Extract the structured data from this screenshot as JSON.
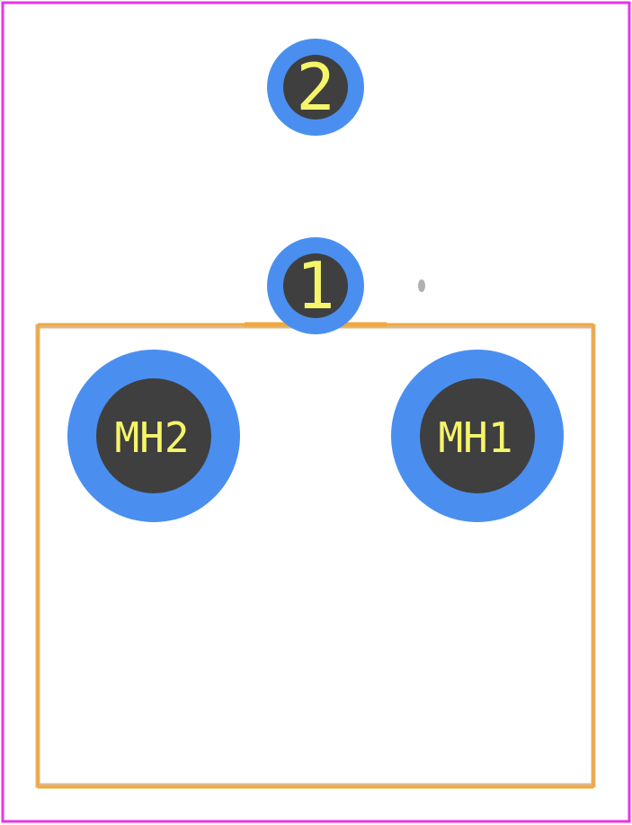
{
  "colors": {
    "background": "#ffffff",
    "courtyard": "#e933e9",
    "silkscreen": "#f2a83c",
    "silkscreen_body": "#dcb88a",
    "pad_copper": "#4a8ff0",
    "drill_hole": "#3f3f3f",
    "pad_text": "#f5f56a",
    "origin_marker": "#b0b0b0"
  },
  "pads": [
    {
      "id": "pad-2",
      "label": "2"
    },
    {
      "id": "pad-1",
      "label": "1"
    },
    {
      "id": "pad-mh2",
      "label": "MH2"
    },
    {
      "id": "pad-mh1",
      "label": "MH1"
    }
  ],
  "icons": {
    "origin_marker": "cross-marker-icon"
  }
}
